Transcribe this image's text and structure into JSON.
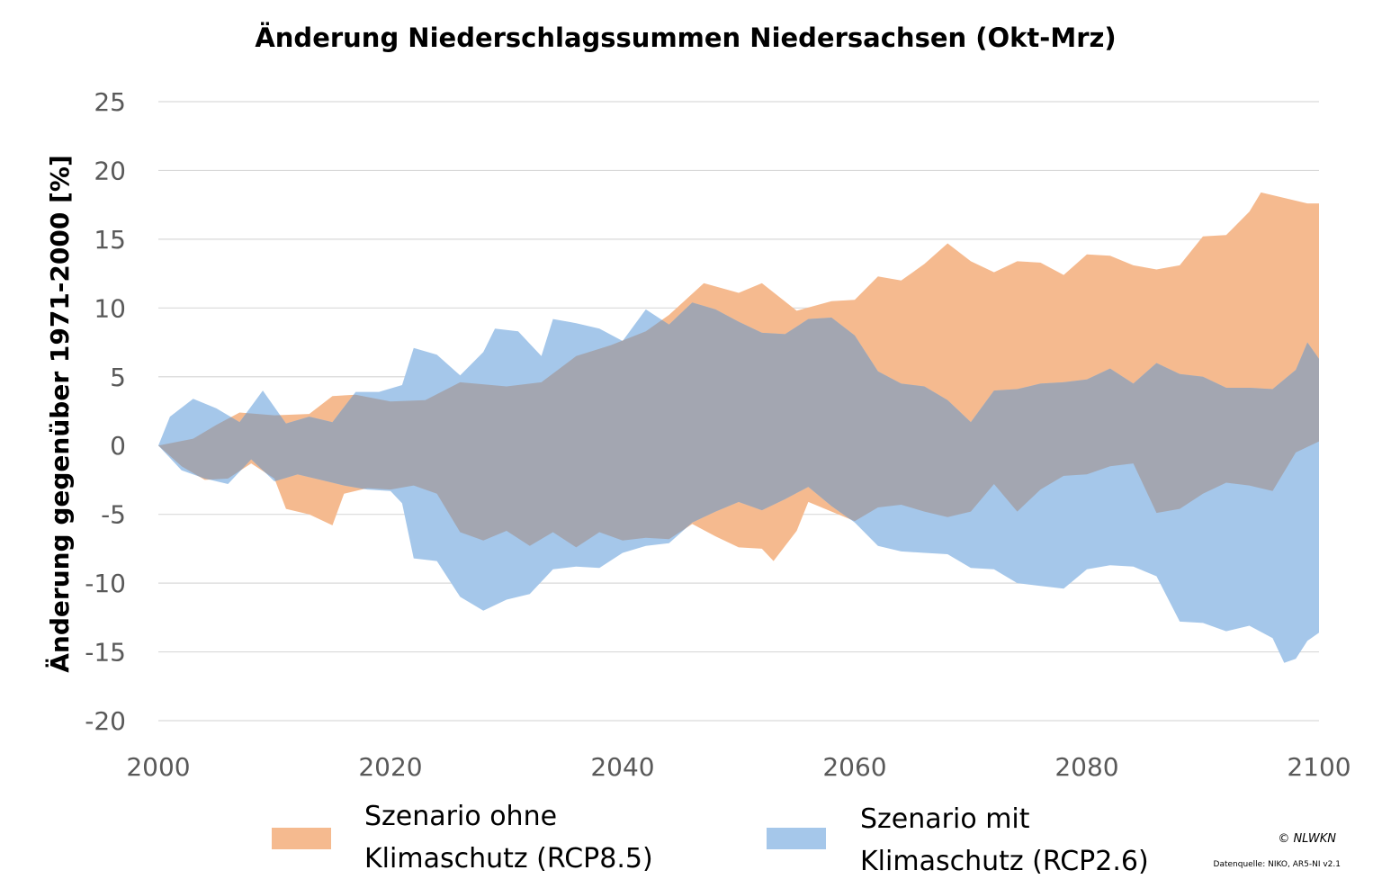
{
  "chart_data": {
    "type": "area",
    "title": "Änderung Niederschlagssummen Niedersachsen (Okt-Mrz)",
    "ylabel": "Änderung gegenüber 1971-2000 [%]",
    "xlabel": "",
    "xlim": [
      2000,
      2100
    ],
    "ylim": [
      -20,
      25
    ],
    "x_ticks": [
      "2000",
      "2020",
      "2040",
      "2060",
      "2080",
      "2100"
    ],
    "y_ticks": [
      "25",
      "20",
      "15",
      "10",
      "5",
      "0",
      "-5",
      "-10",
      "-15",
      "-20"
    ],
    "grid": true,
    "legend_position": "bottom",
    "series": [
      {
        "name_lines": [
          "Szenario ohne",
          "Klimaschutz (RCP8.5)"
        ],
        "color": "#F5BA8F",
        "upper": [
          [
            2000,
            0
          ],
          [
            2003,
            0.5
          ],
          [
            2005,
            1.5
          ],
          [
            2007,
            2.4
          ],
          [
            2010,
            2.2
          ],
          [
            2013,
            2.3
          ],
          [
            2015,
            3.6
          ],
          [
            2017,
            3.7
          ],
          [
            2020,
            3.2
          ],
          [
            2023,
            3.3
          ],
          [
            2026,
            4.6
          ],
          [
            2030,
            4.3
          ],
          [
            2033,
            4.6
          ],
          [
            2036,
            6.5
          ],
          [
            2039,
            7.3
          ],
          [
            2042,
            8.3
          ],
          [
            2044,
            9.5
          ],
          [
            2047,
            11.8
          ],
          [
            2050,
            11.1
          ],
          [
            2052,
            11.8
          ],
          [
            2055,
            9.8
          ],
          [
            2058,
            10.5
          ],
          [
            2060,
            10.6
          ],
          [
            2062,
            12.3
          ],
          [
            2064,
            12.0
          ],
          [
            2066,
            13.2
          ],
          [
            2068,
            14.7
          ],
          [
            2070,
            13.4
          ],
          [
            2072,
            12.6
          ],
          [
            2074,
            13.4
          ],
          [
            2076,
            13.3
          ],
          [
            2078,
            12.4
          ],
          [
            2080,
            13.9
          ],
          [
            2082,
            13.8
          ],
          [
            2084,
            13.1
          ],
          [
            2086,
            12.8
          ],
          [
            2088,
            13.1
          ],
          [
            2090,
            15.2
          ],
          [
            2092,
            15.3
          ],
          [
            2094,
            17.0
          ],
          [
            2095,
            18.4
          ],
          [
            2097,
            18.0
          ],
          [
            2099,
            17.6
          ],
          [
            2100,
            17.6
          ]
        ],
        "lower": [
          [
            2000,
            0
          ],
          [
            2002,
            -1.5
          ],
          [
            2004,
            -2.5
          ],
          [
            2006,
            -2.4
          ],
          [
            2008,
            -1.3
          ],
          [
            2010,
            -2.4
          ],
          [
            2011,
            -4.6
          ],
          [
            2013,
            -5.0
          ],
          [
            2015,
            -5.8
          ],
          [
            2016,
            -3.5
          ],
          [
            2018,
            -3.1
          ],
          [
            2020,
            -3.2
          ],
          [
            2022,
            -2.9
          ],
          [
            2024,
            -3.5
          ],
          [
            2026,
            -6.3
          ],
          [
            2028,
            -6.9
          ],
          [
            2030,
            -6.2
          ],
          [
            2032,
            -7.3
          ],
          [
            2034,
            -6.3
          ],
          [
            2036,
            -7.4
          ],
          [
            2038,
            -6.3
          ],
          [
            2040,
            -6.9
          ],
          [
            2042,
            -6.7
          ],
          [
            2044,
            -6.8
          ],
          [
            2046,
            -5.7
          ],
          [
            2048,
            -6.6
          ],
          [
            2050,
            -7.4
          ],
          [
            2052,
            -7.5
          ],
          [
            2053,
            -8.4
          ],
          [
            2055,
            -6.2
          ],
          [
            2056,
            -4.1
          ],
          [
            2058,
            -4.8
          ],
          [
            2060,
            -5.5
          ],
          [
            2062,
            -4.5
          ],
          [
            2064,
            -4.3
          ],
          [
            2066,
            -4.8
          ],
          [
            2068,
            -5.2
          ],
          [
            2070,
            -4.8
          ],
          [
            2072,
            -2.8
          ],
          [
            2074,
            -4.8
          ],
          [
            2076,
            -3.2
          ],
          [
            2078,
            -2.2
          ],
          [
            2080,
            -2.1
          ],
          [
            2082,
            -1.5
          ],
          [
            2084,
            -1.3
          ],
          [
            2086,
            -4.9
          ],
          [
            2088,
            -4.6
          ],
          [
            2090,
            -3.5
          ],
          [
            2092,
            -2.7
          ],
          [
            2094,
            -2.9
          ],
          [
            2096,
            -3.3
          ],
          [
            2098,
            -0.5
          ],
          [
            2100,
            0.3
          ]
        ]
      },
      {
        "name_lines": [
          "Szenario mit",
          "Klimaschutz (RCP2.6)"
        ],
        "color": "#A5C7EA",
        "upper": [
          [
            2000,
            0
          ],
          [
            2001,
            2.1
          ],
          [
            2003,
            3.4
          ],
          [
            2005,
            2.7
          ],
          [
            2007,
            1.7
          ],
          [
            2009,
            4.0
          ],
          [
            2011,
            1.6
          ],
          [
            2013,
            2.1
          ],
          [
            2015,
            1.7
          ],
          [
            2017,
            3.9
          ],
          [
            2019,
            3.9
          ],
          [
            2021,
            4.4
          ],
          [
            2022,
            7.1
          ],
          [
            2024,
            6.6
          ],
          [
            2026,
            5.1
          ],
          [
            2028,
            6.8
          ],
          [
            2029,
            8.5
          ],
          [
            2031,
            8.3
          ],
          [
            2033,
            6.5
          ],
          [
            2034,
            9.2
          ],
          [
            2036,
            8.9
          ],
          [
            2038,
            8.5
          ],
          [
            2040,
            7.6
          ],
          [
            2042,
            9.9
          ],
          [
            2044,
            8.8
          ],
          [
            2046,
            10.4
          ],
          [
            2048,
            9.9
          ],
          [
            2050,
            9.0
          ],
          [
            2052,
            8.2
          ],
          [
            2054,
            8.1
          ],
          [
            2056,
            9.2
          ],
          [
            2058,
            9.3
          ],
          [
            2060,
            8.0
          ],
          [
            2062,
            5.4
          ],
          [
            2064,
            4.5
          ],
          [
            2066,
            4.3
          ],
          [
            2068,
            3.3
          ],
          [
            2070,
            1.7
          ],
          [
            2072,
            4.0
          ],
          [
            2074,
            4.1
          ],
          [
            2076,
            4.5
          ],
          [
            2078,
            4.6
          ],
          [
            2080,
            4.8
          ],
          [
            2082,
            5.6
          ],
          [
            2084,
            4.5
          ],
          [
            2086,
            6.0
          ],
          [
            2088,
            5.2
          ],
          [
            2090,
            5.0
          ],
          [
            2092,
            4.2
          ],
          [
            2094,
            4.2
          ],
          [
            2096,
            4.1
          ],
          [
            2098,
            5.5
          ],
          [
            2099,
            7.5
          ],
          [
            2100,
            6.3
          ]
        ],
        "lower": [
          [
            2000,
            0
          ],
          [
            2002,
            -1.8
          ],
          [
            2004,
            -2.4
          ],
          [
            2006,
            -2.8
          ],
          [
            2008,
            -1.0
          ],
          [
            2010,
            -2.6
          ],
          [
            2012,
            -2.1
          ],
          [
            2014,
            -2.5
          ],
          [
            2016,
            -2.9
          ],
          [
            2018,
            -3.2
          ],
          [
            2020,
            -3.3
          ],
          [
            2021,
            -4.2
          ],
          [
            2022,
            -8.2
          ],
          [
            2024,
            -8.4
          ],
          [
            2026,
            -11.0
          ],
          [
            2028,
            -12.0
          ],
          [
            2030,
            -11.2
          ],
          [
            2032,
            -10.8
          ],
          [
            2034,
            -9.0
          ],
          [
            2036,
            -8.8
          ],
          [
            2038,
            -8.9
          ],
          [
            2040,
            -7.8
          ],
          [
            2042,
            -7.3
          ],
          [
            2044,
            -7.1
          ],
          [
            2046,
            -5.6
          ],
          [
            2048,
            -4.8
          ],
          [
            2050,
            -4.1
          ],
          [
            2052,
            -4.7
          ],
          [
            2054,
            -3.9
          ],
          [
            2056,
            -3.0
          ],
          [
            2058,
            -4.4
          ],
          [
            2060,
            -5.6
          ],
          [
            2062,
            -7.3
          ],
          [
            2064,
            -7.7
          ],
          [
            2066,
            -7.8
          ],
          [
            2068,
            -7.9
          ],
          [
            2070,
            -8.9
          ],
          [
            2072,
            -9.0
          ],
          [
            2074,
            -10.0
          ],
          [
            2076,
            -10.2
          ],
          [
            2078,
            -10.4
          ],
          [
            2080,
            -9.0
          ],
          [
            2082,
            -8.7
          ],
          [
            2084,
            -8.8
          ],
          [
            2086,
            -9.5
          ],
          [
            2088,
            -12.8
          ],
          [
            2090,
            -12.9
          ],
          [
            2092,
            -13.5
          ],
          [
            2094,
            -13.1
          ],
          [
            2096,
            -14.0
          ],
          [
            2097,
            -15.8
          ],
          [
            2098,
            -15.5
          ],
          [
            2099,
            -14.2
          ],
          [
            2100,
            -13.6
          ]
        ]
      }
    ],
    "overlap_color": "#A3A6B1",
    "credit": "© NLWKN",
    "source": "Datenquelle: NIKO, AR5-NI v2.1"
  }
}
